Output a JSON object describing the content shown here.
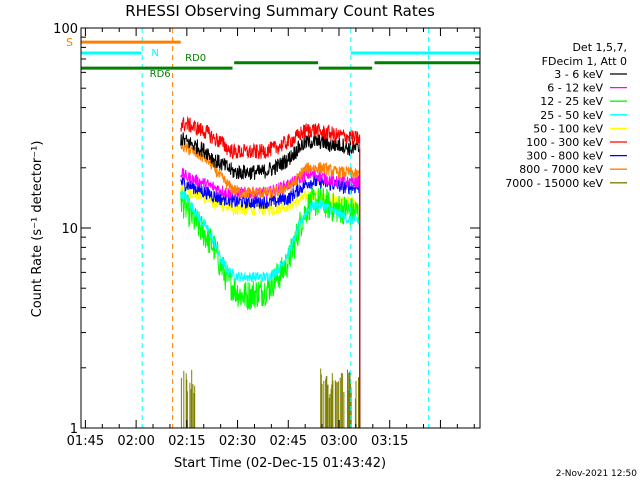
{
  "chart_data": {
    "type": "line",
    "title": "RHESSI Observing Summary Count Rates",
    "xlabel": "Start Time (02-Dec-15 01:43:42)",
    "ylabel": "Count Rate (s⁻¹ detector⁻¹)",
    "y_scale": "log",
    "ylim": [
      1,
      100
    ],
    "xlim_min": [
      103.7,
      221.7
    ],
    "y_ticks": [
      {
        "v": 1,
        "label": "1"
      },
      {
        "v": 10,
        "label": "10"
      },
      {
        "v": 100,
        "label": "100"
      }
    ],
    "x_ticks": [
      {
        "m": 105,
        "label": "01:45"
      },
      {
        "m": 120,
        "label": "02:00"
      },
      {
        "m": 135,
        "label": "02:15"
      },
      {
        "m": 150,
        "label": "02:30"
      },
      {
        "m": 165,
        "label": "02:45"
      },
      {
        "m": 180,
        "label": "03:00"
      },
      {
        "m": 195,
        "label": "03:15"
      }
    ],
    "legend_header": [
      "Det 1,5,7,",
      "FDecim 1, Att 0"
    ],
    "legend_placement": "right",
    "data_start_min": 133.2,
    "data_end_min": 186.2,
    "time_points_min": [
      133.2,
      135,
      137,
      139,
      141,
      143,
      145,
      147,
      149,
      151,
      153,
      155,
      157,
      159,
      161,
      163,
      165,
      167,
      169,
      171,
      173,
      175,
      177,
      179,
      181,
      183,
      185,
      186.2
    ],
    "series": [
      {
        "name": "3 - 6 keV",
        "color": "#000000",
        "noise": 0.09,
        "values": [
          28,
          27,
          26,
          25,
          24,
          22,
          21,
          20,
          19,
          19,
          19,
          19,
          19,
          19.5,
          20,
          21,
          22,
          24,
          26,
          27,
          27,
          27,
          26,
          26,
          26,
          25,
          25,
          25
        ]
      },
      {
        "name": "6 - 12 keV",
        "color": "#ff00ff",
        "noise": 0.07,
        "values": [
          19,
          18,
          17.5,
          17,
          16.5,
          16,
          15.5,
          15,
          15,
          15,
          15,
          15,
          15,
          15,
          15.5,
          16,
          16.5,
          17,
          18,
          18.5,
          18.5,
          18,
          17.5,
          17,
          17,
          17,
          17,
          17
        ]
      },
      {
        "name": "12 - 25 keV",
        "color": "#00ff00",
        "noise": 0.18,
        "values": [
          14,
          12.5,
          11,
          10,
          9,
          8,
          6.5,
          5.5,
          5,
          4.6,
          4.6,
          4.7,
          4.8,
          5,
          5.5,
          6,
          6.8,
          8.5,
          11,
          13,
          13.5,
          13.5,
          13,
          12.5,
          12.5,
          12,
          12,
          12
        ]
      },
      {
        "name": "25 - 50 keV",
        "color": "#00ffff",
        "noise": 0.06,
        "values": [
          15,
          14,
          12.5,
          11,
          10,
          8.5,
          7,
          6.2,
          5.8,
          5.7,
          5.7,
          5.7,
          5.7,
          5.7,
          6,
          6.5,
          7.5,
          9,
          11,
          12.5,
          13,
          13,
          12.5,
          12,
          11.5,
          11,
          11,
          10.5
        ]
      },
      {
        "name": "50 - 100 keV",
        "color": "#ffff00",
        "noise": 0.08,
        "values": [
          16,
          15.5,
          15,
          14.5,
          14,
          13.5,
          13,
          13,
          12.5,
          12.5,
          12.5,
          12.5,
          12.5,
          12.5,
          12.5,
          13,
          13,
          13.5,
          14,
          14.5,
          14.5,
          14,
          14,
          13.5,
          13.5,
          13.5,
          13,
          13
        ]
      },
      {
        "name": "100 - 300 keV",
        "color": "#ff0000",
        "noise": 0.09,
        "values": [
          33,
          33,
          32,
          31,
          30,
          28,
          27,
          25,
          24,
          24,
          24,
          24,
          24,
          24.5,
          25,
          26,
          27,
          28,
          30,
          31,
          31,
          30,
          30,
          29,
          29,
          28.5,
          28,
          28
        ]
      },
      {
        "name": "300 - 800 keV",
        "color": "#0000ff",
        "noise": 0.08,
        "values": [
          17,
          16.5,
          16,
          15.5,
          15,
          14.5,
          14,
          14,
          13.5,
          13.5,
          13.5,
          13.5,
          13.5,
          13.5,
          13.5,
          14,
          14,
          15,
          16,
          17,
          17,
          17,
          16.5,
          16.5,
          16,
          16,
          16,
          16
        ]
      },
      {
        "name": "800 - 7000 keV",
        "color": "#ff8000",
        "noise": 0.07,
        "values": [
          26,
          25,
          24,
          23,
          22,
          20,
          18,
          16.5,
          15.5,
          15,
          15,
          15,
          15,
          15,
          15,
          15.5,
          16,
          17,
          19,
          20,
          20,
          20,
          19.5,
          19,
          19,
          19,
          18.5,
          18.5
        ]
      },
      {
        "name": "7000 - 15000 keV",
        "color": "#808000",
        "noise": 0,
        "spiky": true,
        "values": [
          1,
          1,
          1,
          1,
          1,
          1,
          1,
          1,
          1,
          1,
          1,
          1,
          1,
          1,
          1,
          1,
          1,
          1,
          1,
          1,
          1,
          1,
          1,
          1,
          1,
          1,
          1,
          1
        ]
      }
    ],
    "state_bars": [
      {
        "label": "S",
        "color": "#ff8000",
        "level": 85,
        "segments": [
          [
            103.7,
            133.2
          ]
        ]
      },
      {
        "label": "N",
        "color": "#00ffff",
        "level": 75,
        "segments": [
          [
            103.7,
            121.5
          ],
          [
            183.5,
            221.7
          ]
        ]
      },
      {
        "label": "RD0",
        "color": "#008000",
        "level": 67,
        "segments": [
          [
            149,
            173.8
          ],
          [
            190.5,
            221.7
          ]
        ]
      },
      {
        "label": "RD6",
        "color": "#008000",
        "level": 63,
        "segments": [
          [
            103.7,
            148.5
          ],
          [
            174,
            189.8
          ]
        ]
      }
    ],
    "vlines": [
      {
        "m": 121.8,
        "color": "#00ffff"
      },
      {
        "m": 130.8,
        "color": "#ff8000"
      },
      {
        "m": 183.5,
        "color": "#00ffff"
      },
      {
        "m": 206.5,
        "color": "#00ffff"
      }
    ],
    "timestamp": "2-Nov-2021 12:50"
  }
}
